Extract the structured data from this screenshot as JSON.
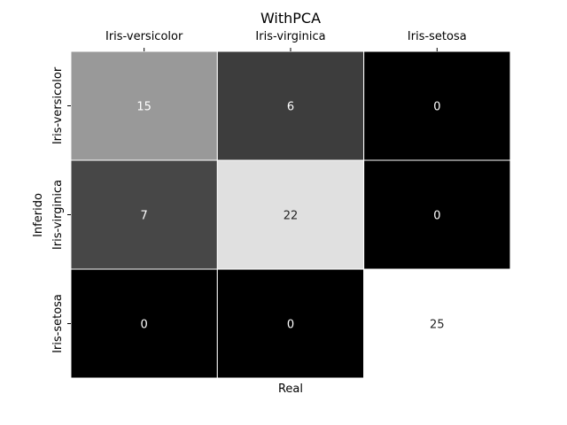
{
  "chart_data": {
    "type": "heatmap",
    "title": "WithPCA",
    "xlabel": "Real",
    "ylabel": "Inferido",
    "x_categories": [
      "Iris-versicolor",
      "Iris-virginica",
      "Iris-setosa"
    ],
    "y_categories": [
      "Iris-versicolor",
      "Iris-virginica",
      "Iris-setosa"
    ],
    "values": [
      [
        15,
        6,
        0
      ],
      [
        7,
        22,
        0
      ],
      [
        0,
        0,
        25
      ]
    ],
    "colormap": "gray",
    "vmin": 0,
    "vmax": 25,
    "x_tick_position": "top",
    "colorbar": false,
    "annotations": true
  }
}
